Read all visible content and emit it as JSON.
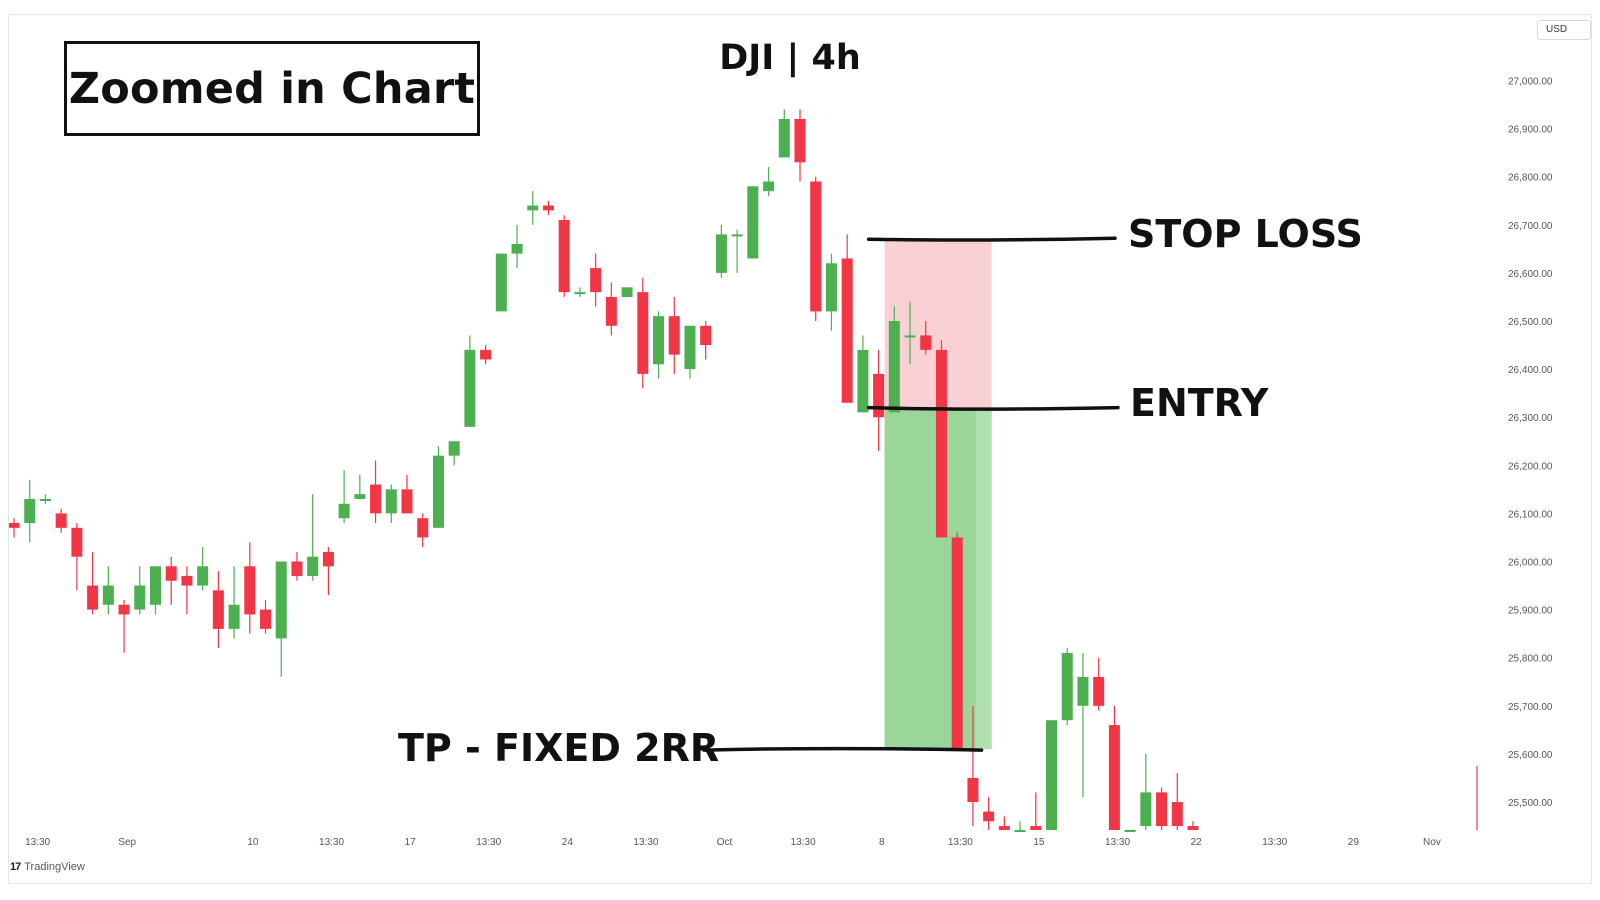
{
  "title_box": "Zoomed in Chart",
  "chart_title": "DJI | 4h",
  "currency_badge": "USD",
  "brand": {
    "logo": "17",
    "name": "TradingView"
  },
  "annotations": {
    "stop_loss": "STOP LOSS",
    "entry": "ENTRY",
    "take_profit": "TP - FIXED 2RR"
  },
  "colors": {
    "up": "#4caf50",
    "down": "#f23645",
    "stop_zone": "#f8c9cd",
    "target_zone": "#8fd18f",
    "target_zone_light": "#b9e2b9"
  },
  "chart_data": {
    "type": "candlestick",
    "symbol": "DJI",
    "interval": "4h",
    "ylim": [
      25430,
      27150
    ],
    "y_ticks": [
      "25,500.00",
      "25,600.00",
      "25,700.00",
      "25,800.00",
      "25,900.00",
      "26,000.00",
      "26,100.00",
      "26,200.00",
      "26,300.00",
      "26,400.00",
      "26,500.00",
      "26,600.00",
      "26,700.00",
      "26,800.00",
      "26,900.00",
      "27,000.00"
    ],
    "x_ticks": [
      {
        "i": 1.5,
        "label": "13:30"
      },
      {
        "i": 7.2,
        "label": "Sep"
      },
      {
        "i": 15.2,
        "label": "10"
      },
      {
        "i": 20.2,
        "label": "13:30"
      },
      {
        "i": 25.2,
        "label": "17"
      },
      {
        "i": 30.2,
        "label": "13:30"
      },
      {
        "i": 35.2,
        "label": "24"
      },
      {
        "i": 40.2,
        "label": "13:30"
      },
      {
        "i": 45.2,
        "label": "Oct"
      },
      {
        "i": 50.2,
        "label": "13:30"
      },
      {
        "i": 55.2,
        "label": "8"
      },
      {
        "i": 60.2,
        "label": "13:30"
      },
      {
        "i": 65.2,
        "label": "15"
      },
      {
        "i": 70.2,
        "label": "13:30"
      },
      {
        "i": 75.2,
        "label": "22"
      },
      {
        "i": 80.2,
        "label": "13:30"
      },
      {
        "i": 85.2,
        "label": "29"
      },
      {
        "i": 90.2,
        "label": "Nov"
      }
    ],
    "candles": [
      {
        "o": 26080,
        "h": 26090,
        "l": 26050,
        "c": 26070
      },
      {
        "o": 26080,
        "h": 26170,
        "l": 26040,
        "c": 26130
      },
      {
        "o": 26130,
        "h": 26140,
        "l": 26120,
        "c": 26130
      },
      {
        "o": 26100,
        "h": 26110,
        "l": 26060,
        "c": 26070
      },
      {
        "o": 26070,
        "h": 26080,
        "l": 25940,
        "c": 26010
      },
      {
        "o": 25950,
        "h": 26020,
        "l": 25890,
        "c": 25900
      },
      {
        "o": 25910,
        "h": 25990,
        "l": 25890,
        "c": 25950
      },
      {
        "o": 25910,
        "h": 25920,
        "l": 25810,
        "c": 25890
      },
      {
        "o": 25900,
        "h": 25990,
        "l": 25890,
        "c": 25950
      },
      {
        "o": 25910,
        "h": 25990,
        "l": 25890,
        "c": 25990
      },
      {
        "o": 25990,
        "h": 26010,
        "l": 25910,
        "c": 25960
      },
      {
        "o": 25970,
        "h": 25990,
        "l": 25890,
        "c": 25950
      },
      {
        "o": 25950,
        "h": 26030,
        "l": 25940,
        "c": 25990
      },
      {
        "o": 25940,
        "h": 25980,
        "l": 25820,
        "c": 25860
      },
      {
        "o": 25860,
        "h": 25990,
        "l": 25840,
        "c": 25910
      },
      {
        "o": 25990,
        "h": 26040,
        "l": 25850,
        "c": 25890
      },
      {
        "o": 25900,
        "h": 25920,
        "l": 25850,
        "c": 25860
      },
      {
        "o": 25840,
        "h": 26000,
        "l": 25760,
        "c": 26000
      },
      {
        "o": 26000,
        "h": 26020,
        "l": 25960,
        "c": 25970
      },
      {
        "o": 25970,
        "h": 26140,
        "l": 25960,
        "c": 26010
      },
      {
        "o": 26020,
        "h": 26030,
        "l": 25930,
        "c": 25990
      },
      {
        "o": 26090,
        "h": 26190,
        "l": 26080,
        "c": 26120
      },
      {
        "o": 26130,
        "h": 26180,
        "l": 26130,
        "c": 26140
      },
      {
        "o": 26160,
        "h": 26210,
        "l": 26080,
        "c": 26100
      },
      {
        "o": 26100,
        "h": 26160,
        "l": 26080,
        "c": 26150
      },
      {
        "o": 26150,
        "h": 26180,
        "l": 26100,
        "c": 26100
      },
      {
        "o": 26090,
        "h": 26100,
        "l": 26030,
        "c": 26050
      },
      {
        "o": 26070,
        "h": 26240,
        "l": 26070,
        "c": 26220
      },
      {
        "o": 26220,
        "h": 26250,
        "l": 26200,
        "c": 26250
      },
      {
        "o": 26280,
        "h": 26470,
        "l": 26280,
        "c": 26440
      },
      {
        "o": 26440,
        "h": 26450,
        "l": 26410,
        "c": 26420
      },
      {
        "o": 26520,
        "h": 26640,
        "l": 26520,
        "c": 26640
      },
      {
        "o": 26640,
        "h": 26700,
        "l": 26610,
        "c": 26660
      },
      {
        "o": 26730,
        "h": 26770,
        "l": 26700,
        "c": 26740
      },
      {
        "o": 26740,
        "h": 26750,
        "l": 26720,
        "c": 26730
      },
      {
        "o": 26710,
        "h": 26720,
        "l": 26550,
        "c": 26560
      },
      {
        "o": 26560,
        "h": 26570,
        "l": 26550,
        "c": 26560
      },
      {
        "o": 26610,
        "h": 26640,
        "l": 26530,
        "c": 26560
      },
      {
        "o": 26550,
        "h": 26580,
        "l": 26470,
        "c": 26490
      },
      {
        "o": 26550,
        "h": 26570,
        "l": 26550,
        "c": 26570
      },
      {
        "o": 26560,
        "h": 26590,
        "l": 26360,
        "c": 26390
      },
      {
        "o": 26410,
        "h": 26520,
        "l": 26380,
        "c": 26510
      },
      {
        "o": 26510,
        "h": 26550,
        "l": 26390,
        "c": 26430
      },
      {
        "o": 26400,
        "h": 26480,
        "l": 26380,
        "c": 26490
      },
      {
        "o": 26490,
        "h": 26500,
        "l": 26420,
        "c": 26450
      },
      {
        "o": 26600,
        "h": 26700,
        "l": 26590,
        "c": 26680
      },
      {
        "o": 26680,
        "h": 26690,
        "l": 26600,
        "c": 26680
      },
      {
        "o": 26630,
        "h": 26780,
        "l": 26630,
        "c": 26780
      },
      {
        "o": 26770,
        "h": 26820,
        "l": 26760,
        "c": 26790
      },
      {
        "o": 26840,
        "h": 26940,
        "l": 26840,
        "c": 26920
      },
      {
        "o": 26920,
        "h": 26940,
        "l": 26790,
        "c": 26830
      },
      {
        "o": 26790,
        "h": 26800,
        "l": 26500,
        "c": 26520
      },
      {
        "o": 26520,
        "h": 26640,
        "l": 26480,
        "c": 26620
      },
      {
        "o": 26630,
        "h": 26680,
        "l": 26330,
        "c": 26330
      },
      {
        "o": 26310,
        "h": 26470,
        "l": 26320,
        "c": 26440
      },
      {
        "o": 26390,
        "h": 26440,
        "l": 26230,
        "c": 26300
      },
      {
        "o": 26310,
        "h": 26530,
        "l": 26310,
        "c": 26500
      },
      {
        "o": 26470,
        "h": 26540,
        "l": 26410,
        "c": 26470
      },
      {
        "o": 26470,
        "h": 26500,
        "l": 26430,
        "c": 26440
      },
      {
        "o": 26440,
        "h": 26460,
        "l": 26050,
        "c": 26050
      },
      {
        "o": 26050,
        "h": 26060,
        "l": 25610,
        "c": 25610
      },
      {
        "o": 25550,
        "h": 25700,
        "l": 25450,
        "c": 25500
      },
      {
        "o": 25480,
        "h": 25510,
        "l": 25430,
        "c": 25460
      },
      {
        "o": 25450,
        "h": 25470,
        "l": 25440,
        "c": 25440
      },
      {
        "o": 25430,
        "h": 25460,
        "l": 25430,
        "c": 25440
      },
      {
        "o": 25450,
        "h": 25520,
        "l": 25420,
        "c": 25440
      },
      {
        "o": 25430,
        "h": 25670,
        "l": 25430,
        "c": 25670
      },
      {
        "o": 25670,
        "h": 25820,
        "l": 25660,
        "c": 25810
      },
      {
        "o": 25700,
        "h": 25810,
        "l": 25510,
        "c": 25760
      },
      {
        "o": 25760,
        "h": 25800,
        "l": 25690,
        "c": 25700
      },
      {
        "o": 25660,
        "h": 25700,
        "l": 25430,
        "c": 25430
      },
      {
        "o": 25430,
        "h": 25440,
        "l": 25430,
        "c": 25430
      },
      {
        "o": 25450,
        "h": 25600,
        "l": 25430,
        "c": 25520
      },
      {
        "o": 25520,
        "h": 25530,
        "l": 25440,
        "c": 25450
      },
      {
        "o": 25500,
        "h": 25560,
        "l": 25440,
        "c": 25450
      },
      {
        "o": 25450,
        "h": 25460,
        "l": 25430,
        "c": 25440
      }
    ],
    "position": {
      "start_i": 55.0,
      "end_i": 62.0,
      "stop_loss": 26670,
      "entry": 26320,
      "take_profit": 25610
    }
  }
}
